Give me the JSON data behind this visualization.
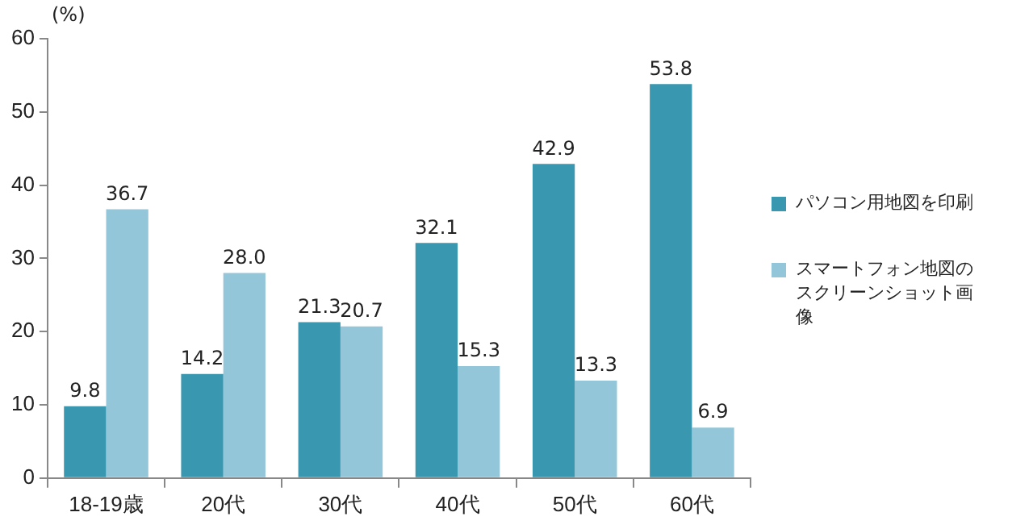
{
  "chart_data": {
    "type": "bar",
    "ylabel": "(%)",
    "categories": [
      "18-19歳",
      "20代",
      "30代",
      "40代",
      "50代",
      "60代"
    ],
    "series": [
      {
        "name": "パソコン用地図を印刷",
        "color": "#3a97b0",
        "values": [
          9.8,
          14.2,
          21.3,
          32.1,
          42.9,
          53.8
        ],
        "value_labels": [
          "9.8",
          "14.2",
          "21.3",
          "32.1",
          "42.9",
          "53.8"
        ]
      },
      {
        "name": "スマートフォン地図のスクリーンショット画像",
        "color": "#93c6d9",
        "values": [
          36.7,
          28.0,
          20.7,
          15.3,
          13.3,
          6.9
        ],
        "value_labels": [
          "36.7",
          "28.0",
          "20.7",
          "15.3",
          "13.3",
          "6.9"
        ]
      }
    ],
    "ylim": [
      0,
      60
    ],
    "yticks": [
      0,
      10,
      20,
      30,
      40,
      50,
      60
    ],
    "grid": false,
    "legend": "right"
  }
}
